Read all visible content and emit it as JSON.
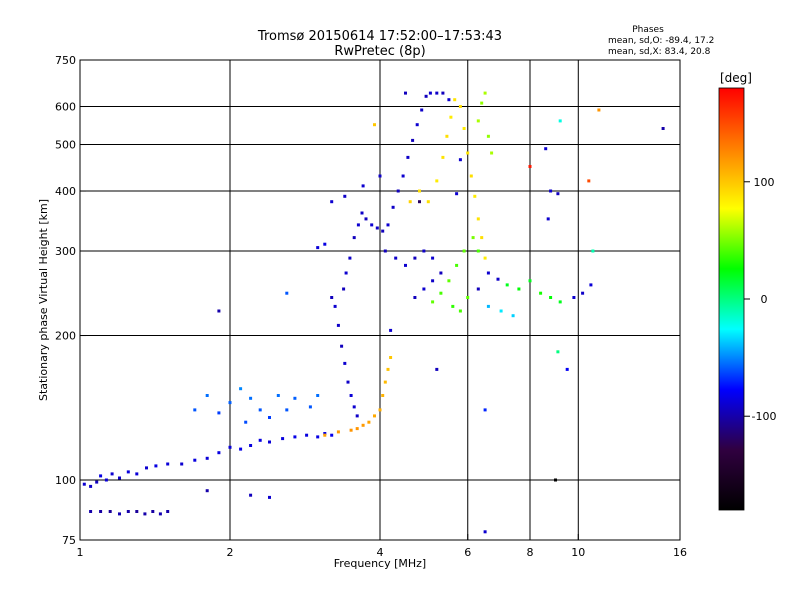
{
  "chart_data": {
    "type": "scatter",
    "title": "Tromsø 20150614 17:52:00–17:53:43",
    "subtitle": "RwPretec (8p)",
    "xlabel": "Frequency [MHz]",
    "ylabel": "Stationary phase Virtual Height [km]",
    "x_scale": "log",
    "y_scale": "log",
    "xlim": [
      1,
      16
    ],
    "ylim": [
      75,
      750
    ],
    "x_ticks": [
      1,
      2,
      4,
      6,
      8,
      10,
      16
    ],
    "y_ticks": [
      75,
      100,
      200,
      300,
      400,
      500,
      600,
      750
    ],
    "x_gridlines": [
      2,
      4,
      6,
      8,
      10
    ],
    "y_gridlines": [
      100,
      200,
      300,
      400,
      500,
      600
    ],
    "grid": true,
    "phase_box": {
      "heading": "Phases",
      "line_o": "mean, sd,O: -89.4, 17.2",
      "line_x": "mean, sd,X:  83.4, 20.8"
    },
    "colorbar": {
      "label": "[deg]",
      "range": [
        -180,
        180
      ],
      "ticks": [
        100,
        0,
        -100
      ],
      "colors": [
        "#ff0000",
        "#ff8000",
        "#ffff00",
        "#00ff00",
        "#00ffff",
        "#0000ff",
        "#300040",
        "#000000"
      ]
    },
    "series": [
      {
        "points": [
          [
            1.02,
            98,
            -90
          ],
          [
            1.05,
            97,
            -92
          ],
          [
            1.08,
            99,
            -95
          ],
          [
            1.1,
            102,
            -85
          ],
          [
            1.13,
            100,
            -88
          ],
          [
            1.16,
            103,
            -90
          ],
          [
            1.2,
            101,
            -92
          ],
          [
            1.25,
            104,
            -86
          ],
          [
            1.3,
            103,
            -88
          ],
          [
            1.36,
            106,
            -90
          ],
          [
            1.42,
            107,
            -85
          ],
          [
            1.5,
            108,
            -88
          ],
          [
            1.6,
            108,
            -90
          ],
          [
            1.7,
            110,
            -86
          ],
          [
            1.8,
            111,
            -88
          ],
          [
            1.9,
            114,
            -85
          ],
          [
            2.0,
            117,
            -88
          ],
          [
            2.1,
            116,
            -84
          ],
          [
            2.2,
            118,
            -86
          ],
          [
            2.3,
            121,
            -85
          ],
          [
            2.4,
            120,
            -88
          ],
          [
            2.55,
            122,
            -86
          ],
          [
            2.7,
            123,
            -84
          ],
          [
            2.85,
            124,
            -86
          ],
          [
            3.0,
            123,
            -85
          ],
          [
            3.1,
            125,
            -84
          ],
          [
            3.2,
            124,
            -82
          ]
        ]
      },
      {
        "points": [
          [
            1.05,
            86,
            -100
          ],
          [
            1.1,
            86,
            -102
          ],
          [
            1.15,
            86,
            -105
          ],
          [
            1.2,
            85,
            -98
          ],
          [
            1.25,
            86,
            -100
          ],
          [
            1.3,
            86,
            -104
          ],
          [
            1.35,
            85,
            -100
          ],
          [
            1.4,
            86,
            -102
          ],
          [
            1.45,
            85,
            -98
          ],
          [
            1.5,
            86,
            -100
          ]
        ]
      },
      {
        "points": [
          [
            1.7,
            140,
            -60
          ],
          [
            1.8,
            150,
            -55
          ],
          [
            1.9,
            138,
            -65
          ],
          [
            2.0,
            145,
            -58
          ],
          [
            2.1,
            155,
            -50
          ],
          [
            2.2,
            148,
            -55
          ],
          [
            2.3,
            140,
            -60
          ],
          [
            2.5,
            150,
            -55
          ],
          [
            2.6,
            140,
            -60
          ],
          [
            2.7,
            148,
            -58
          ],
          [
            2.9,
            142,
            -60
          ],
          [
            3.0,
            150,
            -55
          ],
          [
            2.4,
            135,
            -65
          ],
          [
            2.15,
            132,
            -62
          ]
        ]
      },
      {
        "points": [
          [
            3.2,
            240,
            -95
          ],
          [
            3.25,
            230,
            -90
          ],
          [
            3.3,
            210,
            -92
          ],
          [
            3.35,
            190,
            -95
          ],
          [
            3.4,
            175,
            -90
          ],
          [
            3.45,
            160,
            -92
          ],
          [
            3.5,
            150,
            -88
          ],
          [
            3.55,
            142,
            -90
          ],
          [
            3.6,
            136,
            -92
          ],
          [
            3.38,
            250,
            -95
          ],
          [
            3.42,
            270,
            -90
          ],
          [
            3.48,
            290,
            -92
          ],
          [
            3.55,
            320,
            -95
          ],
          [
            3.62,
            340,
            -90
          ],
          [
            3.68,
            360,
            -92
          ],
          [
            3.75,
            350,
            -95
          ],
          [
            3.85,
            340,
            -90
          ],
          [
            3.95,
            335,
            -92
          ],
          [
            4.05,
            330,
            -95
          ],
          [
            4.15,
            340,
            -90
          ],
          [
            4.25,
            370,
            -92
          ],
          [
            4.35,
            400,
            -95
          ],
          [
            4.45,
            430,
            -90
          ],
          [
            4.55,
            470,
            -92
          ],
          [
            4.65,
            510,
            -95
          ],
          [
            4.75,
            550,
            -90
          ],
          [
            4.85,
            590,
            -92
          ],
          [
            4.95,
            630,
            -95
          ],
          [
            5.05,
            640,
            -90
          ],
          [
            5.2,
            640,
            -92
          ],
          [
            5.35,
            640,
            -95
          ],
          [
            5.5,
            620,
            -90
          ],
          [
            4.1,
            300,
            -95
          ],
          [
            4.3,
            290,
            -92
          ],
          [
            4.5,
            280,
            -90
          ],
          [
            4.7,
            290,
            -95
          ],
          [
            4.9,
            300,
            -92
          ],
          [
            5.1,
            290,
            -90
          ],
          [
            5.3,
            270,
            -95
          ],
          [
            5.1,
            260,
            -92
          ],
          [
            4.9,
            250,
            -90
          ],
          [
            4.7,
            240,
            -95
          ],
          [
            3.1,
            310,
            -85
          ],
          [
            3.0,
            305,
            -88
          ],
          [
            3.2,
            380,
            -90
          ],
          [
            3.4,
            390,
            -92
          ],
          [
            3.7,
            410,
            -90
          ],
          [
            4.0,
            430,
            -92
          ]
        ]
      },
      {
        "points": [
          [
            5.0,
            380,
            90
          ],
          [
            5.2,
            420,
            85
          ],
          [
            5.35,
            470,
            88
          ],
          [
            5.45,
            520,
            90
          ],
          [
            5.55,
            570,
            85
          ],
          [
            5.65,
            620,
            88
          ],
          [
            5.8,
            600,
            90
          ],
          [
            5.9,
            540,
            85
          ],
          [
            6.0,
            480,
            88
          ],
          [
            6.1,
            430,
            90
          ],
          [
            6.2,
            390,
            85
          ],
          [
            6.3,
            350,
            88
          ],
          [
            6.4,
            320,
            90
          ],
          [
            6.5,
            290,
            85
          ],
          [
            6.3,
            300,
            40
          ],
          [
            6.15,
            320,
            50
          ],
          [
            5.9,
            300,
            45
          ],
          [
            5.7,
            280,
            40
          ],
          [
            5.5,
            260,
            45
          ],
          [
            5.3,
            245,
            40
          ],
          [
            5.1,
            235,
            45
          ],
          [
            5.6,
            230,
            35
          ],
          [
            5.8,
            225,
            40
          ],
          [
            6.0,
            240,
            45
          ],
          [
            6.3,
            560,
            60
          ],
          [
            6.4,
            610,
            55
          ],
          [
            6.5,
            640,
            60
          ],
          [
            6.6,
            520,
            55
          ],
          [
            6.7,
            480,
            60
          ],
          [
            4.6,
            380,
            95
          ],
          [
            4.8,
            400,
            90
          ]
        ]
      },
      {
        "points": [
          [
            3.6,
            128,
            120
          ],
          [
            3.7,
            130,
            118
          ],
          [
            3.8,
            132,
            115
          ],
          [
            3.9,
            136,
            112
          ],
          [
            4.0,
            140,
            110
          ],
          [
            4.05,
            150,
            108
          ],
          [
            4.1,
            160,
            105
          ],
          [
            4.15,
            170,
            102
          ],
          [
            4.2,
            180,
            100
          ],
          [
            3.5,
            127,
            120
          ],
          [
            3.3,
            126,
            118
          ],
          [
            3.1,
            124,
            115
          ]
        ]
      },
      {
        "points": [
          [
            7.2,
            255,
            20
          ],
          [
            7.6,
            250,
            25
          ],
          [
            8.0,
            260,
            20
          ],
          [
            8.4,
            245,
            30
          ],
          [
            8.8,
            240,
            25
          ],
          [
            9.2,
            235,
            20
          ],
          [
            6.6,
            230,
            -40
          ],
          [
            7.0,
            225,
            -30
          ],
          [
            7.4,
            220,
            -35
          ],
          [
            9.8,
            240,
            -90
          ],
          [
            10.2,
            245,
            -92
          ],
          [
            10.6,
            255,
            -88
          ],
          [
            6.3,
            250,
            -95
          ],
          [
            6.6,
            270,
            -90
          ],
          [
            6.9,
            262,
            -92
          ]
        ]
      },
      {
        "points": [
          [
            2.6,
            245,
            -60
          ],
          [
            1.9,
            225,
            -100
          ],
          [
            1.8,
            95,
            -100
          ],
          [
            2.2,
            93,
            -95
          ],
          [
            2.4,
            92,
            -90
          ],
          [
            4.5,
            640,
            -95
          ],
          [
            3.9,
            550,
            100
          ],
          [
            8.0,
            450,
            170
          ],
          [
            8.6,
            490,
            -90
          ],
          [
            8.8,
            400,
            -90
          ],
          [
            9.1,
            395,
            -95
          ],
          [
            8.7,
            350,
            -90
          ],
          [
            6.5,
            78,
            -90
          ],
          [
            6.5,
            140,
            -70
          ],
          [
            9.1,
            185,
            0
          ],
          [
            9.5,
            170,
            -80
          ],
          [
            9.0,
            100,
            -180
          ],
          [
            10.7,
            300,
            -10
          ],
          [
            10.5,
            420,
            150
          ],
          [
            11.0,
            590,
            120
          ],
          [
            14.8,
            540,
            -100
          ],
          [
            9.2,
            560,
            -20
          ],
          [
            5.8,
            465,
            -90
          ],
          [
            5.7,
            395,
            -90
          ],
          [
            5.2,
            170,
            -95
          ],
          [
            4.8,
            380,
            -120
          ],
          [
            4.2,
            205,
            -90
          ]
        ]
      }
    ]
  }
}
